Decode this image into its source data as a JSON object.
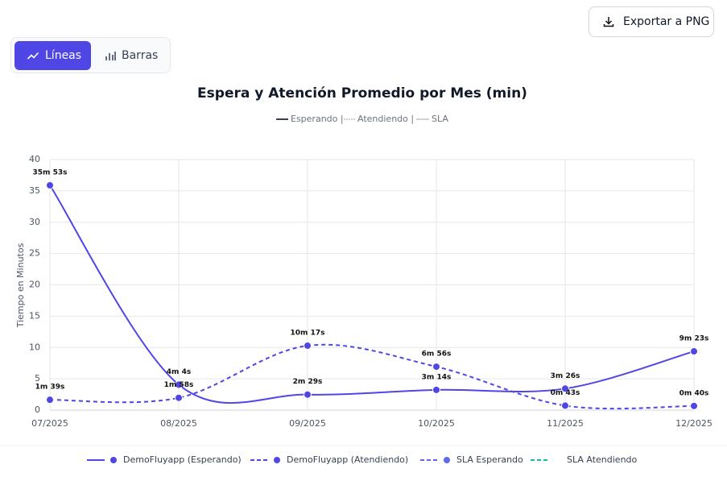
{
  "toolbar": {
    "export_button": "Exportar a PNG",
    "view_toggle": [
      "Líneas",
      "Barras"
    ]
  },
  "chart_data": {
    "type": "line",
    "title": "Espera y Atención Promedio por Mes (min)",
    "hint_legend": [
      "Esperando |",
      "Atendiendo |",
      "SLA"
    ],
    "y_label": "Tiempo en Minutos",
    "categories": [
      "07/2025",
      "08/2025",
      "09/2025",
      "10/2025",
      "11/2025",
      "12/2025"
    ],
    "ylim": [
      0,
      40
    ],
    "yticks": [
      0,
      5,
      10,
      15,
      20,
      25,
      30,
      35,
      40
    ],
    "grid": true,
    "legend": "bottom",
    "series": [
      {
        "name": "DemoFluyapp (Esperando)",
        "color": "#4f46e5",
        "dash": false,
        "values": [
          35.883,
          4.067,
          2.483,
          3.233,
          3.433,
          9.383
        ],
        "value_labels": [
          "35m 53s",
          "4m 4s",
          "2m 29s",
          "3m 14s",
          "3m 26s",
          "9m 23s"
        ]
      },
      {
        "name": "DemoFluyapp (Atendiendo)",
        "color": "#4f46e5",
        "dash": true,
        "values": [
          1.65,
          1.967,
          10.283,
          6.933,
          0.717,
          0.667
        ],
        "value_labels": [
          "1m 39s",
          "1m 58s",
          "10m 17s",
          "6m 56s",
          "0m 43s",
          "0m 40s"
        ]
      },
      {
        "name": "SLA Esperando",
        "color": "#6366f1",
        "dash": true,
        "values": [
          null,
          null,
          null,
          null,
          null,
          null
        ]
      },
      {
        "name": "SLA Atendiendo",
        "color": "#14b8a6",
        "dash": true,
        "values": [
          null,
          null,
          null,
          null,
          null,
          null
        ]
      }
    ]
  }
}
